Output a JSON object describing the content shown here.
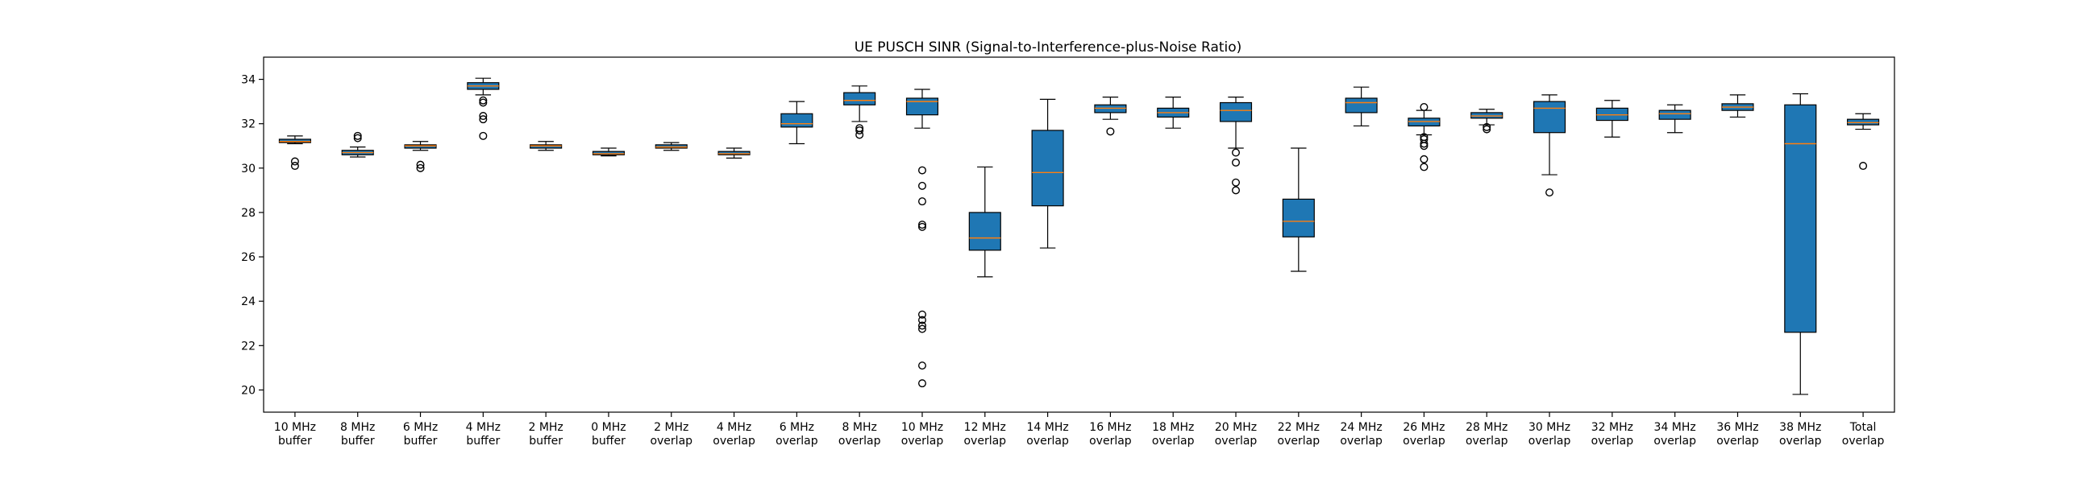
{
  "chart_data": {
    "type": "box",
    "title": "UE PUSCH SINR (Signal-to-Interference-plus-Noise Ratio)",
    "xlabel": "",
    "ylabel": "",
    "ylim": [
      19,
      35
    ],
    "yticks": [
      20,
      22,
      24,
      26,
      28,
      30,
      32,
      34
    ],
    "grid": false,
    "colors": {
      "box": "#1f77b4",
      "median": "#ff7f0e"
    },
    "boxes": [
      {
        "label": [
          "10 MHz",
          "buffer"
        ],
        "whislo": 31.1,
        "q1": 31.15,
        "med": 31.2,
        "q3": 31.3,
        "whishi": 31.45,
        "fliers": [
          30.3,
          30.1
        ]
      },
      {
        "label": [
          "8 MHz",
          "buffer"
        ],
        "whislo": 30.5,
        "q1": 30.6,
        "med": 30.7,
        "q3": 30.8,
        "whishi": 30.95,
        "fliers": [
          31.35,
          31.45
        ]
      },
      {
        "label": [
          "6 MHz",
          "buffer"
        ],
        "whislo": 30.8,
        "q1": 30.9,
        "med": 31.0,
        "q3": 31.05,
        "whishi": 31.2,
        "fliers": [
          30.15,
          30.0
        ]
      },
      {
        "label": [
          "4 MHz",
          "buffer"
        ],
        "whislo": 33.3,
        "q1": 33.55,
        "med": 33.7,
        "q3": 33.85,
        "whishi": 34.05,
        "fliers": [
          33.05,
          32.95,
          32.35,
          32.2,
          31.45
        ]
      },
      {
        "label": [
          "2 MHz",
          "buffer"
        ],
        "whislo": 30.8,
        "q1": 30.9,
        "med": 31.0,
        "q3": 31.05,
        "whishi": 31.2,
        "fliers": []
      },
      {
        "label": [
          "0 MHz",
          "buffer"
        ],
        "whislo": 30.55,
        "q1": 30.6,
        "med": 30.65,
        "q3": 30.75,
        "whishi": 30.9,
        "fliers": []
      },
      {
        "label": [
          "2 MHz",
          "overlap"
        ],
        "whislo": 30.8,
        "q1": 30.9,
        "med": 30.95,
        "q3": 31.05,
        "whishi": 31.15,
        "fliers": []
      },
      {
        "label": [
          "4 MHz",
          "overlap"
        ],
        "whislo": 30.45,
        "q1": 30.6,
        "med": 30.65,
        "q3": 30.75,
        "whishi": 30.9,
        "fliers": []
      },
      {
        "label": [
          "6 MHz",
          "overlap"
        ],
        "whislo": 31.1,
        "q1": 31.85,
        "med": 32.0,
        "q3": 32.45,
        "whishi": 33.0,
        "fliers": []
      },
      {
        "label": [
          "8 MHz",
          "overlap"
        ],
        "whislo": 32.1,
        "q1": 32.85,
        "med": 33.05,
        "q3": 33.4,
        "whishi": 33.7,
        "fliers": [
          31.8,
          31.7,
          31.5
        ]
      },
      {
        "label": [
          "10 MHz",
          "overlap"
        ],
        "whislo": 31.8,
        "q1": 32.4,
        "med": 33.0,
        "q3": 33.15,
        "whishi": 33.55,
        "fliers": [
          29.9,
          29.2,
          28.5,
          27.45,
          27.35,
          23.4,
          23.15,
          22.9,
          22.75,
          21.1,
          20.3
        ]
      },
      {
        "label": [
          "12 MHz",
          "overlap"
        ],
        "whislo": 25.1,
        "q1": 26.3,
        "med": 26.85,
        "q3": 28.0,
        "whishi": 30.05,
        "fliers": []
      },
      {
        "label": [
          "14 MHz",
          "overlap"
        ],
        "whislo": 26.4,
        "q1": 28.3,
        "med": 29.8,
        "q3": 31.7,
        "whishi": 33.1,
        "fliers": []
      },
      {
        "label": [
          "16 MHz",
          "overlap"
        ],
        "whislo": 32.2,
        "q1": 32.5,
        "med": 32.7,
        "q3": 32.85,
        "whishi": 33.2,
        "fliers": [
          31.65
        ]
      },
      {
        "label": [
          "18 MHz",
          "overlap"
        ],
        "whislo": 31.8,
        "q1": 32.3,
        "med": 32.5,
        "q3": 32.7,
        "whishi": 33.2,
        "fliers": []
      },
      {
        "label": [
          "20 MHz",
          "overlap"
        ],
        "whislo": 30.9,
        "q1": 32.1,
        "med": 32.6,
        "q3": 32.95,
        "whishi": 33.2,
        "fliers": [
          30.7,
          30.25,
          29.35,
          29.0
        ]
      },
      {
        "label": [
          "22 MHz",
          "overlap"
        ],
        "whislo": 25.35,
        "q1": 26.9,
        "med": 27.6,
        "q3": 28.6,
        "whishi": 30.9,
        "fliers": []
      },
      {
        "label": [
          "24 MHz",
          "overlap"
        ],
        "whislo": 31.9,
        "q1": 32.5,
        "med": 32.95,
        "q3": 33.15,
        "whishi": 33.65,
        "fliers": []
      },
      {
        "label": [
          "26 MHz",
          "overlap"
        ],
        "whislo": 31.5,
        "q1": 31.9,
        "med": 32.1,
        "q3": 32.25,
        "whishi": 32.6,
        "fliers": [
          32.75,
          31.4,
          31.3,
          31.1,
          31.0,
          30.4,
          30.05
        ]
      },
      {
        "label": [
          "28 MHz",
          "overlap"
        ],
        "whislo": 31.95,
        "q1": 32.25,
        "med": 32.35,
        "q3": 32.5,
        "whishi": 32.65,
        "fliers": [
          31.85,
          31.75
        ]
      },
      {
        "label": [
          "30 MHz",
          "overlap"
        ],
        "whislo": 29.7,
        "q1": 31.6,
        "med": 32.7,
        "q3": 33.0,
        "whishi": 33.3,
        "fliers": [
          28.9
        ]
      },
      {
        "label": [
          "32 MHz",
          "overlap"
        ],
        "whislo": 31.4,
        "q1": 32.15,
        "med": 32.4,
        "q3": 32.7,
        "whishi": 33.05,
        "fliers": []
      },
      {
        "label": [
          "34 MHz",
          "overlap"
        ],
        "whislo": 31.6,
        "q1": 32.2,
        "med": 32.45,
        "q3": 32.6,
        "whishi": 32.85,
        "fliers": []
      },
      {
        "label": [
          "36 MHz",
          "overlap"
        ],
        "whislo": 32.3,
        "q1": 32.6,
        "med": 32.75,
        "q3": 32.9,
        "whishi": 33.3,
        "fliers": []
      },
      {
        "label": [
          "38 MHz",
          "overlap"
        ],
        "whislo": 19.8,
        "q1": 22.6,
        "med": 31.1,
        "q3": 32.85,
        "whishi": 33.35,
        "fliers": []
      },
      {
        "label": [
          "Total",
          "overlap"
        ],
        "whislo": 31.75,
        "q1": 31.95,
        "med": 32.05,
        "q3": 32.2,
        "whishi": 32.45,
        "fliers": [
          30.1
        ]
      }
    ]
  }
}
